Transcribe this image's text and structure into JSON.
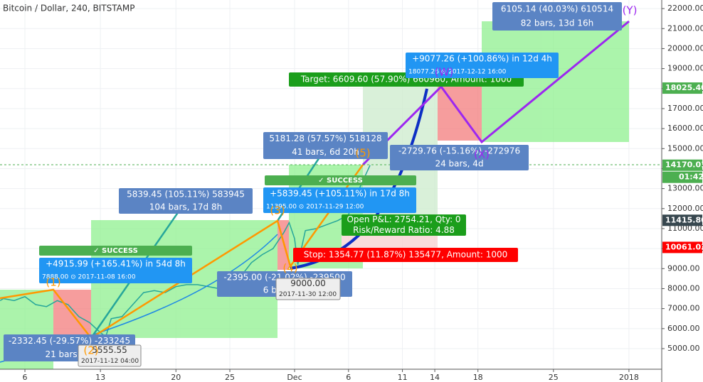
{
  "chart_data": {
    "type": "line",
    "title": "Bitcoin / Dollar, 240, BITSTAMP",
    "x": [
      2.7,
      3,
      4,
      5,
      6,
      7,
      8,
      9,
      10,
      11,
      12,
      12.5,
      13,
      14,
      15,
      16,
      17,
      18,
      19,
      20,
      21,
      22,
      23,
      24,
      25,
      26,
      27,
      28,
      29,
      29.5,
      30,
      30.3,
      31,
      32,
      33,
      34,
      35,
      36,
      37
    ],
    "values": [
      7400,
      7500,
      7400,
      7600,
      7200,
      7100,
      7400,
      7200,
      6600,
      6300,
      5800,
      5600,
      6500,
      6600,
      7200,
      7800,
      7900,
      7800,
      8100,
      8200,
      8200,
      8100,
      8000,
      8200,
      8600,
      9300,
      9700,
      10000,
      10800,
      11300,
      10500,
      9200,
      10900,
      11000,
      11200,
      11400,
      11700,
      13000,
      14170
    ],
    "color": "#26a69a",
    "xlim": [
      2.69,
      64.04
    ],
    "ylim": [
      3970,
      22430
    ],
    "xticks": [
      {
        "value": 5,
        "label": "6"
      },
      {
        "value": 12,
        "label": "13"
      },
      {
        "value": 19,
        "label": "20"
      },
      {
        "value": 24,
        "label": "25"
      },
      {
        "value": 30,
        "label": "Dec"
      },
      {
        "value": 35,
        "label": "6"
      },
      {
        "value": 40,
        "label": "11"
      },
      {
        "value": 43,
        "label": "14"
      },
      {
        "value": 47,
        "label": "18"
      },
      {
        "value": 54,
        "label": "25"
      },
      {
        "value": 61,
        "label": "2018"
      }
    ],
    "yticks": [
      {
        "value": 5000,
        "label": "5000.00"
      },
      {
        "value": 6000,
        "label": "6000.00"
      },
      {
        "value": 7000,
        "label": "7000.00"
      },
      {
        "value": 8000,
        "label": "8000.00"
      },
      {
        "value": 9000,
        "label": "9000.00"
      },
      {
        "value": 10000,
        "label": "10000.00"
      },
      {
        "value": 11000,
        "label": "11000.00"
      },
      {
        "value": 12000,
        "label": "12000.00"
      },
      {
        "value": 13000,
        "label": "13000.00"
      },
      {
        "value": 14000,
        "label": "14000.00"
      },
      {
        "value": 15000,
        "label": "15000.00"
      },
      {
        "value": 16000,
        "label": "16000.00"
      },
      {
        "value": 17000,
        "label": "17000.00"
      },
      {
        "value": 18000,
        "label": "18000.00"
      },
      {
        "value": 19000,
        "label": "19000.00"
      },
      {
        "value": 20000,
        "label": "20000.00"
      },
      {
        "value": 21000,
        "label": "21000.00"
      },
      {
        "value": 22000,
        "label": "22000.00"
      }
    ],
    "grid": true,
    "price_labels": [
      {
        "value": 18025.4,
        "label": "18025.40",
        "color": "#4caf50"
      },
      {
        "value": 14170.01,
        "label": "14170.01",
        "color": "#4caf50"
      },
      {
        "value": 11415.8,
        "label": "11415.80",
        "color": "#37474f"
      },
      {
        "value": 10061.03,
        "label": "10061.03",
        "color": "#f00"
      }
    ],
    "countdown": "01:42",
    "annotations": [
      {
        "lines": [
          "✓ SUCCESS"
        ],
        "color": "#4caf50"
      },
      {
        "lines": [
          "+4915.99 (+165.41%) in 54d 8h",
          "7888.00 ⊙ 2017-11-08 16:00"
        ],
        "color": "#2196f3"
      },
      {
        "lines": [
          "5839.45 (105.11%) 583945",
          "104 bars, 17d 8h"
        ],
        "color": "#5b84c4"
      },
      {
        "lines": [
          "-2332.45 (-29.57%) -233245",
          "21 bars, 4d"
        ],
        "color": "#5b84c4"
      },
      {
        "lines": [
          "5555.55",
          "2017-11-12 04:00"
        ],
        "color": "#eeeeee"
      },
      {
        "lines": [
          "5181.28 (57.57%) 518128",
          "41 bars, 6d 20h"
        ],
        "color": "#5b84c4"
      },
      {
        "lines": [
          "✓ SUCCESS"
        ],
        "color": "#4caf50"
      },
      {
        "lines": [
          "+5839.45 (+105.11%) in 17d 8h",
          "11395.00 ⊙ 2017-11-29 12:00"
        ],
        "color": "#2196f3"
      },
      {
        "lines": [
          "Open P&L: 2754.21, Qty: 0",
          "Risk/Reward Ratio: 4.88"
        ],
        "color": "#1b9e1b"
      },
      {
        "lines": [
          "Stop: 1354.77 (11.87%) 135477, Amount: 1000"
        ],
        "color": "#f00"
      },
      {
        "lines": [
          "-2395.00 (-21.02%) -239500",
          "6 bars, 1d"
        ],
        "color": "#5b84c4"
      },
      {
        "lines": [
          "9000.00",
          "2017-11-30 12:00"
        ],
        "color": "#eeeeee"
      },
      {
        "lines": [
          "Target: 6609.60 (57.90%) 660960, Amount: 1000"
        ],
        "color": "#1b9e1b"
      },
      {
        "lines": [
          "+9077.26 (+100.86%) in 12d 4h",
          "18077.26 ⊙ 2017-12-12 16:00"
        ],
        "color": "#2196f3"
      },
      {
        "lines": [
          "-2729.76 (-15.16%) -272976",
          "24 bars, 4d"
        ],
        "color": "#5b84c4"
      },
      {
        "lines": [
          "6105.14 (40.03%) 610514",
          "82 bars, 13d 16h"
        ],
        "color": "#5b84c4"
      }
    ],
    "wave_labels": [
      "(1)",
      "(2)",
      "(3)",
      "(4)",
      "(5)",
      "(W)",
      "(X)",
      "(Y)"
    ]
  }
}
